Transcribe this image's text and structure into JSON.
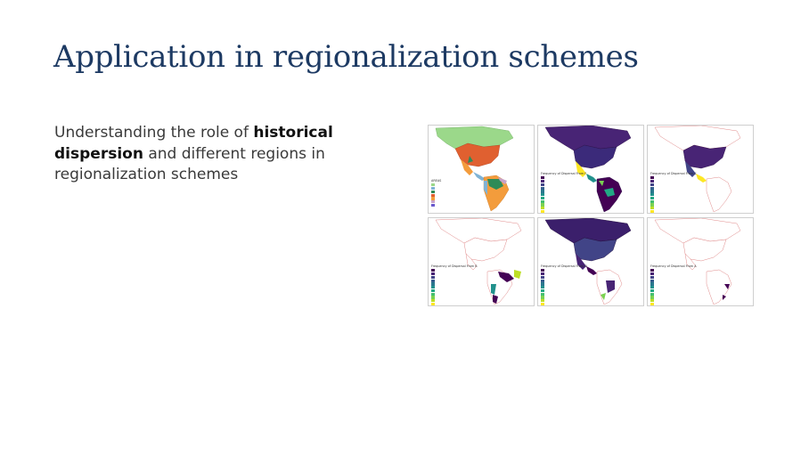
{
  "slide": {
    "title": "Application in regionalization schemes",
    "body": {
      "pre": "Understanding the role of ",
      "bold1": "historical",
      "bold2": "dispersion",
      "post": " and different regions in regionalization schemes"
    }
  },
  "figure": {
    "panels": [
      {
        "id": "areas",
        "legend_title": "AREAS",
        "swatch_colors": [
          "#9bd88a",
          "#7fb3d5",
          "#2e8b57",
          "#e06030",
          "#f39c3c",
          "#c8a2c8",
          "#6a5acd"
        ]
      },
      {
        "id": "dispersal-f",
        "legend_title": "Frequency of Dispersal From F",
        "swatch_colors": [
          "#440154",
          "#482475",
          "#414487",
          "#355f8d",
          "#2a788e",
          "#21918c",
          "#22a884",
          "#44bf70",
          "#7ad151",
          "#bddf26",
          "#fde725"
        ]
      },
      {
        "id": "dispersal-c",
        "legend_title": "Frequency of Dispersal From C",
        "swatch_colors": [
          "#440154",
          "#482475",
          "#414487",
          "#355f8d",
          "#2a788e",
          "#21918c",
          "#22a884",
          "#44bf70",
          "#7ad151",
          "#bddf26",
          "#fde725"
        ]
      },
      {
        "id": "dispersal-b",
        "legend_title": "Frequency of Dispersal From B",
        "swatch_colors": [
          "#440154",
          "#482475",
          "#414487",
          "#355f8d",
          "#2a788e",
          "#21918c",
          "#22a884",
          "#44bf70",
          "#7ad151",
          "#bddf26",
          "#fde725"
        ]
      },
      {
        "id": "dispersal-d",
        "legend_title": "Frequency of Dispersal From D",
        "swatch_colors": [
          "#440154",
          "#482475",
          "#414487",
          "#355f8d",
          "#2a788e",
          "#21918c",
          "#22a884",
          "#44bf70",
          "#7ad151",
          "#bddf26",
          "#fde725"
        ]
      },
      {
        "id": "dispersal-a",
        "legend_title": "Frequency of Dispersal From A",
        "swatch_colors": [
          "#440154",
          "#482475",
          "#414487",
          "#355f8d",
          "#2a788e",
          "#21918c",
          "#22a884",
          "#44bf70",
          "#7ad151",
          "#bddf26",
          "#fde725"
        ]
      }
    ]
  }
}
